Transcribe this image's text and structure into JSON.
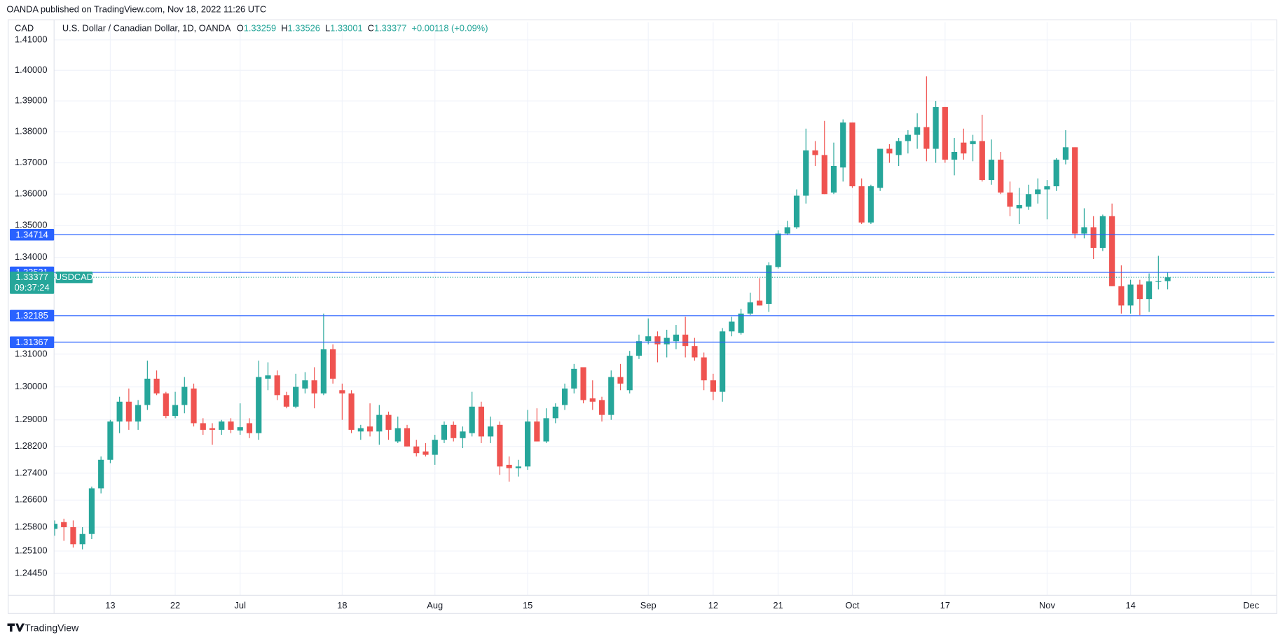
{
  "published": "OANDA published on TradingView.com, Nov 18, 2022 11:26 UTC",
  "brand": "TradingView",
  "chart_data": {
    "type": "candlestick",
    "currency": "CAD",
    "symbol": "U.S. Dollar / Canadian Dollar, 1D, OANDA",
    "ticker": "USDCAD",
    "ohlc_letters": [
      "O",
      "H",
      "L",
      "C"
    ],
    "change": "+0.00118 (+0.09%)",
    "countdown": "09:37:24",
    "up_color": "#26a69a",
    "down_color": "#ef5350",
    "log_scale": true,
    "grid": true,
    "categories": [
      null,
      null,
      null,
      null,
      null,
      null,
      "13",
      null,
      null,
      null,
      null,
      null,
      null,
      "22",
      null,
      null,
      null,
      null,
      null,
      null,
      "Jul",
      null,
      null,
      null,
      null,
      null,
      null,
      null,
      null,
      null,
      null,
      "18",
      null,
      null,
      null,
      null,
      null,
      null,
      null,
      null,
      null,
      "Aug",
      null,
      null,
      null,
      null,
      null,
      null,
      null,
      null,
      null,
      "15",
      null,
      null,
      null,
      null,
      null,
      null,
      null,
      null,
      null,
      null,
      null,
      null,
      "Sep",
      null,
      null,
      null,
      null,
      null,
      null,
      "12",
      null,
      null,
      null,
      null,
      null,
      null,
      "21",
      null,
      null,
      null,
      null,
      null,
      null,
      null,
      "Oct",
      null,
      null,
      null,
      null,
      null,
      null,
      null,
      null,
      null,
      "17",
      null,
      null,
      null,
      null,
      null,
      null,
      null,
      null,
      null,
      null,
      "Nov",
      null,
      null,
      null,
      null,
      null,
      null,
      null,
      null,
      "14",
      null,
      null,
      null,
      null,
      null,
      null,
      null,
      null,
      null,
      null,
      null,
      null,
      "Dec",
      null,
      null
    ],
    "open": [
      1.2575,
      1.2595,
      1.258,
      1.253,
      1.256,
      1.2695,
      1.278,
      1.2895,
      1.2955,
      1.2895,
      1.2945,
      1.3025,
      1.298,
      1.2912,
      1.2945,
      1.2995,
      1.289,
      1.2875,
      1.287,
      1.2895,
      1.2868,
      1.289,
      1.286,
      1.3025,
      1.3035,
      1.2975,
      1.294,
      1.2995,
      1.302,
      1.298,
      1.3115,
      1.299,
      1.298,
      1.2865,
      1.288,
      1.2865,
      1.2915,
      1.2835,
      1.2875,
      1.282,
      1.2805,
      1.2795,
      1.284,
      1.2885,
      1.2845,
      1.286,
      1.294,
      1.285,
      1.2885,
      1.2765,
      1.2755,
      1.276,
      1.2895,
      1.2835,
      1.2905,
      1.2945,
      1.2995,
      1.306,
      1.2965,
      1.296,
      1.2915,
      1.303,
      1.299,
      1.3095,
      1.314,
      1.3155,
      1.313,
      1.314,
      1.316,
      1.3125,
      1.309,
      1.302,
      1.2985,
      1.317,
      1.3165,
      1.3225,
      1.3265,
      1.3255,
      1.337,
      1.3475,
      1.3495,
      1.3595,
      1.374,
      1.3725,
      1.3605,
      1.3685,
      1.383,
      1.3625,
      1.351,
      1.362,
      1.3745,
      1.3725,
      1.377,
      1.379,
      1.3815,
      1.3745,
      1.388,
      1.371,
      1.3765,
      1.376,
      1.377,
      1.3645,
      1.371,
      1.3605,
      1.3555,
      1.356,
      1.36,
      1.3615,
      1.3625,
      1.371,
      1.375,
      1.3475,
      1.3495,
      1.343,
      1.353,
      1.331,
      1.325,
      1.3315,
      1.327,
      1.3325,
      1.33259,
      null,
      null,
      null,
      null,
      null,
      null,
      null,
      null,
      null,
      null,
      null
    ],
    "high": [
      1.26,
      1.2605,
      1.26,
      1.258,
      1.27,
      1.279,
      1.29,
      1.297,
      1.2995,
      1.296,
      1.308,
      1.305,
      1.2985,
      1.2985,
      1.303,
      1.301,
      1.2905,
      1.289,
      1.29,
      1.2905,
      1.295,
      1.2905,
      1.308,
      1.3075,
      1.305,
      1.2985,
      1.304,
      1.3045,
      1.306,
      1.3225,
      1.313,
      1.301,
      1.299,
      1.2885,
      1.295,
      1.2945,
      1.2925,
      1.291,
      1.2885,
      1.284,
      1.283,
      1.2855,
      1.2895,
      1.2895,
      1.288,
      1.2985,
      1.2955,
      1.291,
      1.2895,
      1.279,
      1.278,
      1.293,
      1.2935,
      1.2935,
      1.295,
      1.301,
      1.307,
      1.306,
      1.302,
      1.297,
      1.305,
      1.307,
      1.311,
      1.316,
      1.321,
      1.317,
      1.3175,
      1.319,
      1.3215,
      1.315,
      1.3105,
      1.304,
      1.318,
      1.3215,
      1.324,
      1.329,
      1.3335,
      1.3385,
      1.3485,
      1.3515,
      1.3615,
      1.381,
      1.377,
      1.3835,
      1.3765,
      1.384,
      1.383,
      1.365,
      1.363,
      1.3745,
      1.376,
      1.378,
      1.3805,
      1.386,
      1.398,
      1.39,
      1.388,
      1.378,
      1.381,
      1.379,
      1.3855,
      1.3775,
      1.3735,
      1.364,
      1.362,
      1.363,
      1.365,
      1.3645,
      1.3715,
      1.3805,
      1.375,
      1.3555,
      1.353,
      1.3535,
      1.357,
      1.3375,
      1.333,
      1.333,
      1.335,
      1.3405,
      1.33526,
      null,
      null,
      null,
      null,
      null,
      null,
      null,
      null,
      null,
      null,
      null
    ],
    "low": [
      1.2555,
      1.254,
      1.252,
      1.2515,
      1.2545,
      1.268,
      1.277,
      1.286,
      1.287,
      1.287,
      1.293,
      1.2975,
      1.2905,
      1.2905,
      1.292,
      1.288,
      1.2855,
      1.2825,
      1.2855,
      1.286,
      1.2855,
      1.2845,
      1.284,
      1.299,
      1.296,
      1.2935,
      1.2935,
      1.298,
      1.2935,
      1.2975,
      1.301,
      1.29,
      1.286,
      1.284,
      1.285,
      1.2825,
      1.284,
      1.283,
      1.282,
      1.279,
      1.279,
      1.2765,
      1.283,
      1.2835,
      1.2815,
      1.285,
      1.283,
      1.283,
      1.2735,
      1.2715,
      1.273,
      1.275,
      1.2835,
      1.283,
      1.289,
      1.293,
      1.298,
      1.295,
      1.293,
      1.2895,
      1.29,
      1.299,
      1.298,
      1.3085,
      1.313,
      1.3075,
      1.309,
      1.3115,
      1.309,
      1.308,
      1.299,
      1.296,
      1.2955,
      1.3155,
      1.316,
      1.322,
      1.325,
      1.323,
      1.3365,
      1.347,
      1.349,
      1.357,
      1.369,
      1.36,
      1.36,
      1.364,
      1.362,
      1.3505,
      1.3505,
      1.361,
      1.37,
      1.369,
      1.373,
      1.3745,
      1.3705,
      1.37,
      1.37,
      1.366,
      1.371,
      1.3705,
      1.364,
      1.363,
      1.36,
      1.353,
      1.3505,
      1.355,
      1.357,
      1.352,
      1.361,
      1.3695,
      1.346,
      1.346,
      1.3395,
      1.342,
      1.331,
      1.3225,
      1.3225,
      1.322,
      1.323,
      1.33,
      1.33001,
      null,
      null,
      null,
      null,
      null,
      null,
      null,
      null,
      null,
      null,
      null
    ],
    "close": [
      1.259,
      1.258,
      1.253,
      1.256,
      1.2695,
      1.278,
      1.2895,
      1.2955,
      1.2895,
      1.2945,
      1.3025,
      1.298,
      1.2912,
      1.2945,
      1.3,
      1.289,
      1.287,
      1.287,
      1.2895,
      1.287,
      1.2878,
      1.286,
      1.303,
      1.3035,
      1.2975,
      1.294,
      1.3,
      1.302,
      1.298,
      1.3115,
      1.3025,
      1.298,
      1.287,
      1.2875,
      1.2865,
      1.2915,
      1.287,
      1.2875,
      1.282,
      1.28,
      1.2795,
      1.284,
      1.2885,
      1.2845,
      1.2865,
      1.294,
      1.285,
      1.288,
      1.276,
      1.2755,
      1.276,
      1.2895,
      1.2835,
      1.2905,
      1.294,
      1.2995,
      1.3055,
      1.296,
      1.2955,
      1.2915,
      1.303,
      1.301,
      1.3095,
      1.314,
      1.3155,
      1.313,
      1.315,
      1.316,
      1.3125,
      1.309,
      1.302,
      1.2985,
      1.317,
      1.32,
      1.3225,
      1.326,
      1.325,
      1.3375,
      1.3475,
      1.3495,
      1.3595,
      1.374,
      1.3725,
      1.36,
      1.369,
      1.383,
      1.3625,
      1.351,
      1.3625,
      1.3745,
      1.373,
      1.377,
      1.379,
      1.3815,
      1.3745,
      1.388,
      1.371,
      1.3735,
      1.373,
      1.377,
      1.3645,
      1.371,
      1.3605,
      1.356,
      1.3565,
      1.36,
      1.3615,
      1.3625,
      1.371,
      1.375,
      1.3475,
      1.3495,
      1.343,
      1.353,
      1.331,
      1.325,
      1.3315,
      1.327,
      1.3325,
      1.3326,
      1.33377,
      null,
      null,
      null,
      null,
      null,
      null,
      null,
      null,
      null,
      null,
      null
    ],
    "last_index": 120,
    "ylim": [
      1.2381,
      1.4158
    ],
    "yticks": [
      {
        "value": 1.41,
        "label": "1.41000"
      },
      {
        "value": 1.4,
        "label": "1.40000"
      },
      {
        "value": 1.39,
        "label": "1.39000"
      },
      {
        "value": 1.38,
        "label": "1.38000"
      },
      {
        "value": 1.37,
        "label": "1.37000"
      },
      {
        "value": 1.36,
        "label": "1.36000"
      },
      {
        "value": 1.35,
        "label": "1.35000"
      },
      {
        "value": 1.34,
        "label": "1.34000"
      },
      {
        "value": 1.31,
        "label": "1.31000"
      },
      {
        "value": 1.3,
        "label": "1.30000"
      },
      {
        "value": 1.29,
        "label": "1.29000"
      },
      {
        "value": 1.282,
        "label": "1.28200"
      },
      {
        "value": 1.274,
        "label": "1.27400"
      },
      {
        "value": 1.266,
        "label": "1.26600"
      },
      {
        "value": 1.258,
        "label": "1.25800"
      },
      {
        "value": 1.251,
        "label": "1.25100"
      },
      {
        "value": 1.2445,
        "label": "1.24450"
      }
    ],
    "price_lines": [
      1.34714,
      1.33531,
      1.32185,
      1.31367
    ],
    "price_line_color": "#2962ff"
  }
}
